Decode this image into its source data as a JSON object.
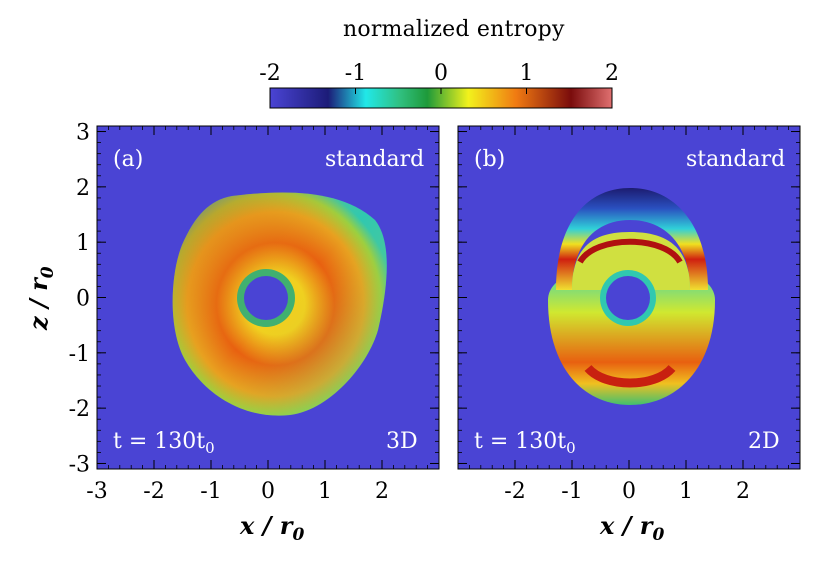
{
  "colorbar": {
    "title": "normalized entropy",
    "ticks": [
      -2,
      -1,
      0,
      1,
      2
    ],
    "tick_labels": [
      "-2",
      "-1",
      "0",
      "1",
      "2"
    ],
    "range": [
      -2,
      2
    ],
    "colors": [
      "#3b3fd8",
      "#1a1a70",
      "#22e6e6",
      "#1ea84a",
      "#f0f020",
      "#f07a10",
      "#801010",
      "#d85a5a"
    ]
  },
  "panels": [
    {
      "label": "(a)",
      "setup": "standard",
      "time": "t = 130t",
      "time_sub": "0",
      "dim": "3D"
    },
    {
      "label": "(b)",
      "setup": "standard",
      "time": "t = 130t",
      "time_sub": "0",
      "dim": "2D"
    }
  ],
  "axes": {
    "xlabel": "x / r",
    "xlabel_sub": "0",
    "ylabel": "z / r",
    "ylabel_sub": "0",
    "left_xticks": [
      "-3",
      "-2",
      "-1",
      "0",
      "1",
      "2"
    ],
    "right_xticks": [
      "-2",
      "-1",
      "0",
      "1",
      "2"
    ],
    "yticks": [
      "3",
      "2",
      "1",
      "0",
      "-1",
      "-2",
      "-3"
    ]
  },
  "chart_data": [
    {
      "type": "heatmap",
      "title": "",
      "xlabel": "x / r0",
      "ylabel": "z / r0",
      "xlim": [
        -3,
        3
      ],
      "ylim": [
        -3.1,
        3.1
      ],
      "colorbar_range": [
        -2,
        2
      ],
      "annotations": [
        "(a)",
        "standard",
        "t = 130t0",
        "3D"
      ]
    },
    {
      "type": "heatmap",
      "title": "",
      "xlabel": "x / r0",
      "ylabel": "",
      "xlim": [
        -3,
        3
      ],
      "ylim": [
        -3.1,
        3.1
      ],
      "colorbar_range": [
        -2,
        2
      ],
      "annotations": [
        "(b)",
        "standard",
        "t = 130t0",
        "2D"
      ]
    }
  ]
}
